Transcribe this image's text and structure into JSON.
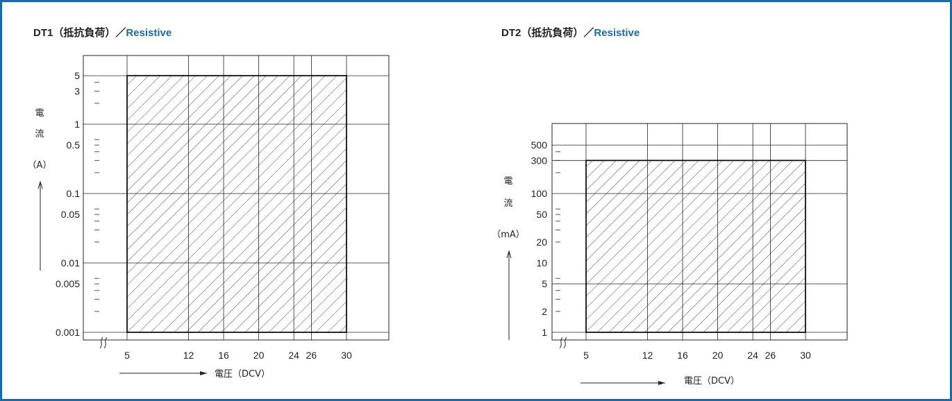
{
  "colors": {
    "frame": "#1a6aa8",
    "title_en": "#1a6aa8",
    "line": "#222222"
  },
  "chart_data": [
    {
      "type": "area",
      "title_prefix": "DT1（抵抗負荷）／",
      "title_en": "Resistive",
      "ylabel_chars": [
        "電",
        "流"
      ],
      "yunit": "（A）",
      "xlabel": "電圧（DCV）",
      "x_ticks": [
        5,
        12,
        16,
        20,
        24,
        26,
        30
      ],
      "y_ticks": [
        "5",
        "3",
        "1",
        "0.5",
        "0.1",
        "0.05",
        "0.01",
        "0.005",
        "0.001"
      ],
      "y_scale": "log",
      "y_range": [
        0.001,
        5
      ],
      "region": {
        "x": [
          5,
          30
        ],
        "y": [
          0.001,
          5
        ]
      }
    },
    {
      "type": "area",
      "title_prefix": "DT2（抵抗負荷）／",
      "title_en": "Resistive",
      "ylabel_chars": [
        "電",
        "流"
      ],
      "yunit": "（mA）",
      "xlabel": "電圧（DCV）",
      "x_ticks": [
        5,
        12,
        16,
        20,
        24,
        26,
        30
      ],
      "y_ticks": [
        "500",
        "300",
        "100",
        "50",
        "20",
        "10",
        "5",
        "2",
        "1"
      ],
      "y_scale": "log",
      "y_range": [
        1,
        500
      ],
      "region": {
        "x": [
          5,
          30
        ],
        "y": [
          1,
          300
        ]
      }
    }
  ]
}
